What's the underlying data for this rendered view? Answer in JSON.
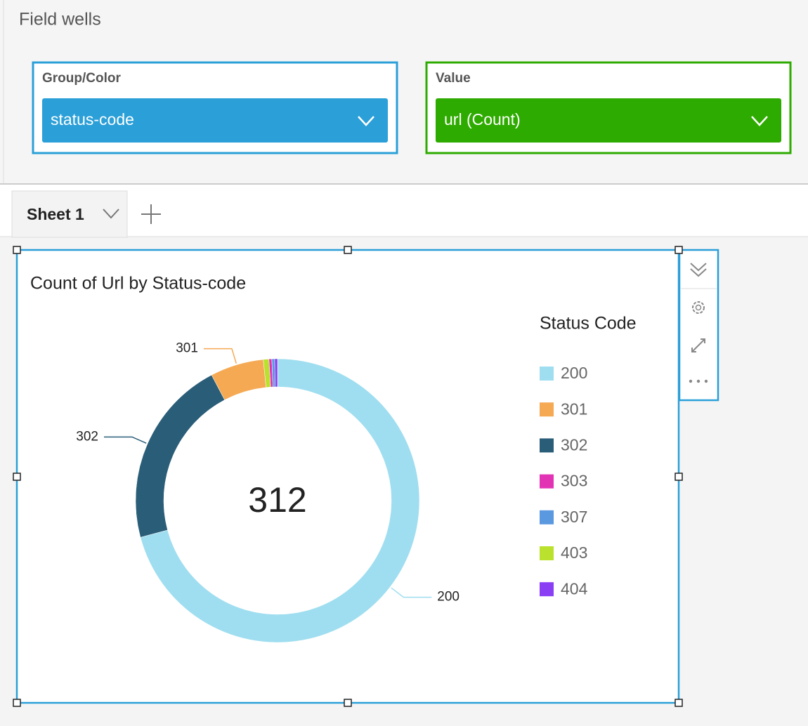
{
  "field_wells": {
    "title": "Field wells",
    "wells": [
      {
        "label": "Group/Color",
        "field": "status-code",
        "color": "#2a9fd8"
      },
      {
        "label": "Value",
        "field": "url (Count)",
        "color": "#2eab00"
      }
    ]
  },
  "tabs": {
    "sheets": [
      "Sheet 1"
    ]
  },
  "chart_data": {
    "type": "donut",
    "title": "Count of Url by Status-code",
    "total": 312,
    "legend_title": "Status Code",
    "legend": "right",
    "sort": "value-descending",
    "categories": [
      "200",
      "301",
      "302",
      "303",
      "307",
      "403",
      "404"
    ],
    "values": [
      221,
      19,
      67,
      1,
      1,
      2,
      1
    ],
    "colors": [
      "#9fdef0",
      "#f5a953",
      "#2a5d78",
      "#e333b5",
      "#5a98e0",
      "#b9e12e",
      "#8a3ff5"
    ]
  }
}
